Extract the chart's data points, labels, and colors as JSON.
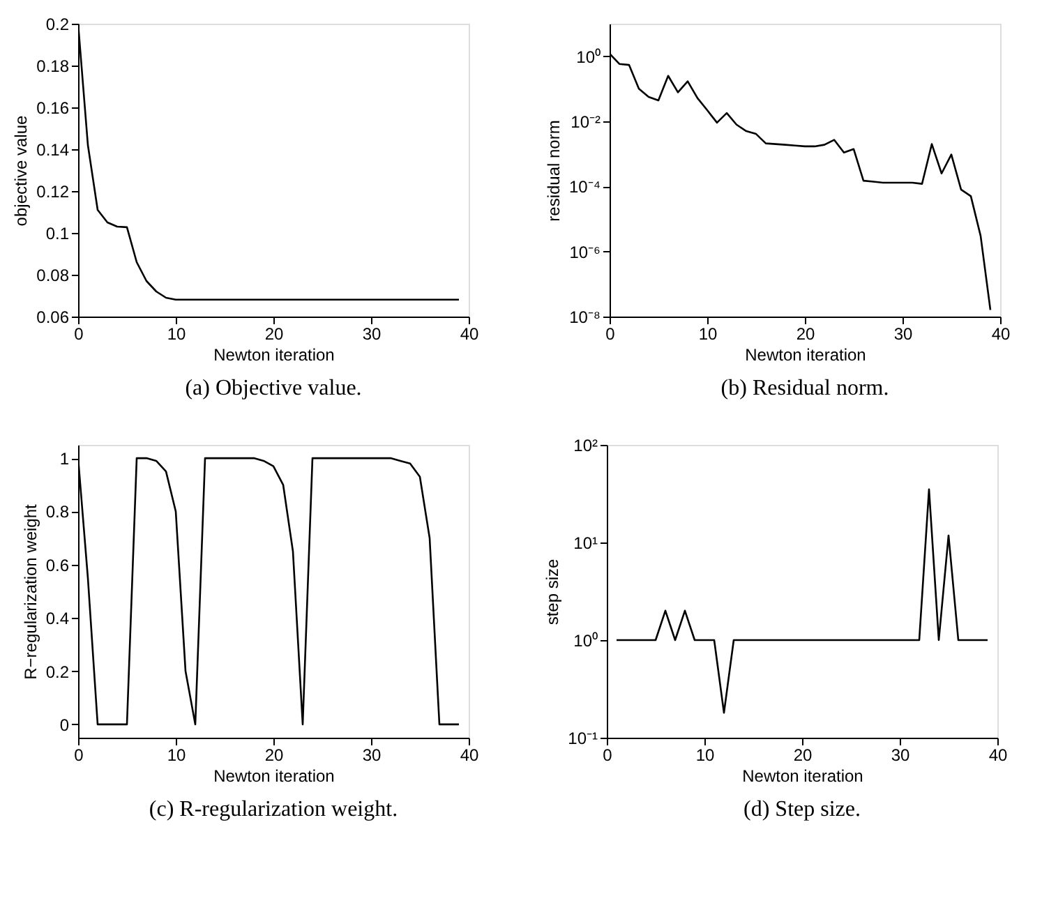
{
  "chart_data": [
    {
      "type": "line",
      "title": "(a) Objective value.",
      "xlabel": "Newton iteration",
      "ylabel": "objective value",
      "grid": false,
      "xlim": [
        0,
        40
      ],
      "xticks": [
        0,
        10,
        20,
        30,
        40
      ],
      "ylim": [
        0.06,
        0.2
      ],
      "yticks": [
        0.06,
        0.08,
        0.1,
        0.12,
        0.14,
        0.16,
        0.18,
        0.2
      ],
      "x": [
        0,
        1,
        2,
        3,
        4,
        5,
        6,
        7,
        8,
        9,
        10,
        11,
        12,
        13,
        14,
        15,
        16,
        17,
        18,
        19,
        20,
        21,
        22,
        23,
        24,
        25,
        26,
        27,
        28,
        29,
        30,
        31,
        32,
        33,
        34,
        35,
        36,
        37,
        38,
        39
      ],
      "series": [
        {
          "color": "#000000",
          "values": [
            0.2,
            0.142,
            0.111,
            0.105,
            0.103,
            0.1027,
            0.086,
            0.077,
            0.072,
            0.069,
            0.0681,
            0.0681,
            0.0681,
            0.0681,
            0.0681,
            0.0681,
            0.0681,
            0.0681,
            0.0681,
            0.0681,
            0.0681,
            0.0681,
            0.0681,
            0.0681,
            0.0681,
            0.0681,
            0.0681,
            0.0681,
            0.0681,
            0.0681,
            0.0681,
            0.0681,
            0.0681,
            0.0681,
            0.0681,
            0.0681,
            0.0681,
            0.0681,
            0.0681,
            0.0681
          ]
        }
      ]
    },
    {
      "type": "line",
      "title": "(b) Residual norm.",
      "xlabel": "Newton iteration",
      "ylabel": "residual norm",
      "grid": false,
      "log": "y",
      "xlim": [
        0,
        40
      ],
      "xticks": [
        0,
        10,
        20,
        30,
        40
      ],
      "ylim": [
        1e-08,
        10
      ],
      "yticks": [
        {
          "value": 1e-08,
          "label": "10⁻⁸"
        },
        {
          "value": 1e-06,
          "label": "10⁻⁶"
        },
        {
          "value": 0.0001,
          "label": "10⁻⁴"
        },
        {
          "value": 0.01,
          "label": "10⁻²"
        },
        {
          "value": 1,
          "label": "10⁰"
        }
      ],
      "x": [
        0,
        1,
        2,
        3,
        4,
        5,
        6,
        7,
        8,
        9,
        10,
        11,
        12,
        13,
        14,
        15,
        16,
        17,
        18,
        19,
        20,
        21,
        22,
        23,
        24,
        25,
        26,
        27,
        28,
        29,
        30,
        31,
        32,
        33,
        34,
        35,
        36,
        37,
        38,
        39
      ],
      "series": [
        {
          "color": "#000000",
          "values": [
            1.2,
            0.58,
            0.54,
            0.1,
            0.056,
            0.044,
            0.25,
            0.078,
            0.17,
            0.052,
            0.022,
            0.0091,
            0.018,
            0.0079,
            0.005,
            0.0041,
            0.0021,
            0.002,
            0.0019,
            0.0018,
            0.0017,
            0.0017,
            0.0019,
            0.0027,
            0.0011,
            0.0014,
            0.00015,
            0.00014,
            0.00013,
            0.00013,
            0.00013,
            0.00013,
            0.00012,
            0.002,
            0.00025,
            0.00095,
            8e-05,
            5e-05,
            3e-06,
            1.6e-08
          ]
        }
      ]
    },
    {
      "type": "line",
      "title": "(c) R-regularization weight.",
      "xlabel": "Newton iteration",
      "ylabel": "R−regularization weight",
      "grid": false,
      "xlim": [
        0,
        40
      ],
      "xticks": [
        0,
        10,
        20,
        30,
        40
      ],
      "ylim": [
        -0.05,
        1.05
      ],
      "yticks": [
        0,
        0.2,
        0.4,
        0.6,
        0.8,
        1
      ],
      "x": [
        0,
        1,
        2,
        3,
        4,
        5,
        6,
        7,
        8,
        9,
        10,
        11,
        12,
        13,
        14,
        15,
        16,
        17,
        18,
        19,
        20,
        21,
        22,
        23,
        24,
        25,
        26,
        27,
        28,
        29,
        30,
        31,
        32,
        33,
        34,
        35,
        36,
        37,
        38,
        39
      ],
      "series": [
        {
          "color": "#000000",
          "values": [
            1,
            0.55,
            0,
            0,
            0,
            0,
            1,
            1,
            0.99,
            0.95,
            0.8,
            0.2,
            0,
            1,
            1,
            1,
            1,
            1,
            1,
            0.99,
            0.97,
            0.9,
            0.65,
            0,
            1,
            1,
            1,
            1,
            1,
            1,
            1,
            1,
            1,
            0.99,
            0.98,
            0.93,
            0.7,
            0,
            0,
            0
          ]
        }
      ]
    },
    {
      "type": "line",
      "title": "(d) Step size.",
      "xlabel": "Newton iteration",
      "ylabel": "step size",
      "grid": false,
      "log": "y",
      "xlim": [
        0,
        40
      ],
      "xticks": [
        0,
        10,
        20,
        30,
        40
      ],
      "ylim": [
        0.1,
        100
      ],
      "yticks": [
        {
          "value": 0.1,
          "label": "10⁻¹"
        },
        {
          "value": 1,
          "label": "10⁰"
        },
        {
          "value": 10,
          "label": "10¹"
        },
        {
          "value": 100,
          "label": "10²"
        }
      ],
      "x": [
        1,
        2,
        3,
        4,
        5,
        6,
        7,
        8,
        9,
        10,
        11,
        12,
        13,
        14,
        15,
        16,
        17,
        18,
        19,
        20,
        21,
        22,
        23,
        24,
        25,
        26,
        27,
        28,
        29,
        30,
        31,
        32,
        33,
        34,
        35,
        36,
        37,
        38,
        39
      ],
      "series": [
        {
          "color": "#000000",
          "values": [
            1,
            1,
            1,
            1,
            1,
            2,
            1,
            2,
            1,
            1,
            1,
            0.18,
            1,
            1,
            1,
            1,
            1,
            1,
            1,
            1,
            1,
            1,
            1,
            1,
            1,
            1,
            1,
            1,
            1,
            1,
            1,
            1,
            35,
            1,
            11.8,
            1,
            1,
            1,
            1
          ]
        }
      ]
    }
  ]
}
